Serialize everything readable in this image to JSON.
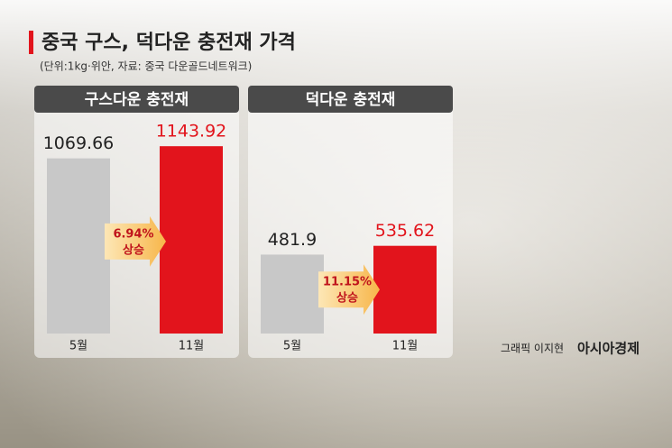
{
  "title": "중국 구스, 덕다운 충전재 가격",
  "subtitle": "(단위:1kg·위안, 자료: 중국 다운골드네트워크)",
  "credit": "그래픽 이지현",
  "brand": "아시아경제",
  "chart_data": [
    {
      "type": "bar",
      "title": "구스다운 충전재",
      "categories": [
        "5월",
        "11월"
      ],
      "values": [
        1069.66,
        1143.92
      ],
      "colors": [
        "#c8c8c8",
        "#e2141c"
      ],
      "ylim": [
        0,
        1200
      ],
      "change": "6.94%",
      "change_label": "상승"
    },
    {
      "type": "bar",
      "title": "덕다운 충전재",
      "categories": [
        "5월",
        "11월"
      ],
      "values": [
        481.9,
        535.62
      ],
      "colors": [
        "#c8c8c8",
        "#e2141c"
      ],
      "ylim": [
        0,
        1200
      ],
      "change": "11.15%",
      "change_label": "상승"
    }
  ]
}
